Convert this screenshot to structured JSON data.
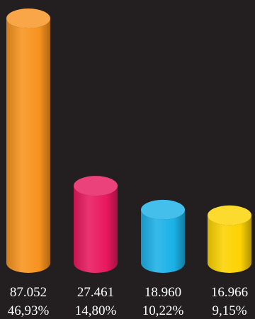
{
  "chart_data": {
    "type": "bar",
    "style": "3d-cylinder",
    "background": "#231f20",
    "categories": [
      "",
      "",
      "",
      ""
    ],
    "values": [
      87052,
      27461,
      18960,
      16966
    ],
    "value_labels": [
      "87.052",
      "27.461",
      "18.960",
      "16.966"
    ],
    "percent_labels": [
      "46,93%",
      "14,80%",
      "10,22%",
      "9,15%"
    ],
    "colors": [
      "#f7931e",
      "#e8185e",
      "#1bb1e6",
      "#fcd200"
    ],
    "ylim": [
      0,
      87052
    ],
    "grid": false,
    "legend": "none",
    "title": "",
    "xlabel": "",
    "ylabel": ""
  }
}
